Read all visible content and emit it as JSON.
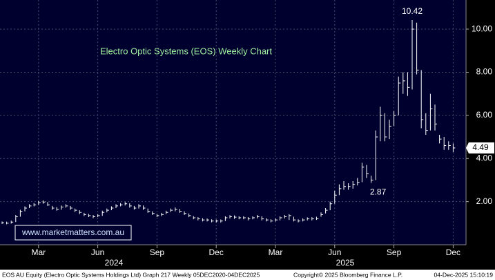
{
  "chart_data": {
    "type": "ohlc",
    "title": "Electro Optic Systems (EOS) Weekly Chart",
    "watermark": "www.marketmatters.com.au",
    "color": "#ffffff",
    "grid": true,
    "categories": [
      null,
      null,
      null,
      null,
      null,
      null,
      null,
      null,
      "Mar",
      null,
      null,
      null,
      null,
      null,
      null,
      null,
      null,
      null,
      null,
      null,
      null,
      "Jun",
      null,
      null,
      null,
      null,
      null,
      null,
      null,
      null,
      null,
      null,
      null,
      null,
      "Sep",
      null,
      null,
      null,
      null,
      null,
      null,
      null,
      null,
      null,
      null,
      null,
      null,
      "Dec",
      null,
      null,
      null,
      null,
      null,
      null,
      null,
      null,
      null,
      null,
      null,
      null,
      "Mar",
      null,
      null,
      null,
      null,
      null,
      null,
      null,
      null,
      null,
      null,
      null,
      null,
      "Jun",
      null,
      null,
      null,
      null,
      null,
      null,
      null,
      null,
      null,
      null,
      null,
      null,
      "Sep",
      null,
      null,
      null,
      null,
      null,
      null,
      null,
      null,
      null,
      null,
      null,
      null,
      "Dec"
    ],
    "x_group_labels": [
      "2024",
      "2025"
    ],
    "high": [
      1.08,
      1.07,
      1.12,
      1.38,
      1.62,
      1.78,
      1.88,
      1.93,
      2.03,
      2.06,
      1.98,
      1.8,
      1.75,
      1.82,
      1.88,
      1.8,
      1.68,
      1.6,
      1.48,
      1.43,
      1.38,
      1.42,
      1.58,
      1.68,
      1.78,
      1.88,
      1.93,
      1.98,
      1.92,
      1.8,
      1.88,
      1.82,
      1.68,
      1.55,
      1.43,
      1.48,
      1.58,
      1.68,
      1.73,
      1.66,
      1.55,
      1.45,
      1.33,
      1.28,
      1.23,
      1.22,
      1.18,
      1.17,
      1.17,
      1.32,
      1.37,
      1.36,
      1.32,
      1.32,
      1.28,
      1.32,
      1.38,
      1.32,
      1.23,
      1.18,
      1.22,
      1.32,
      1.38,
      1.42,
      1.3,
      1.18,
      1.22,
      1.27,
      1.28,
      1.3,
      1.5,
      1.7,
      2.0,
      2.5,
      2.8,
      2.95,
      2.85,
      2.95,
      3.1,
      3.8,
      3.7,
      3.2,
      5.3,
      6.4,
      6.1,
      5.8,
      6.2,
      7.8,
      8.0,
      8.0,
      10.42,
      10.3,
      8.1,
      6.1,
      7.0,
      6.5,
      5.1,
      5.0,
      4.8,
      4.7
    ],
    "low": [
      0.96,
      0.95,
      0.98,
      1.05,
      1.3,
      1.55,
      1.7,
      1.78,
      1.85,
      1.9,
      1.8,
      1.62,
      1.58,
      1.62,
      1.72,
      1.62,
      1.52,
      1.42,
      1.33,
      1.28,
      1.23,
      1.28,
      1.34,
      1.5,
      1.6,
      1.7,
      1.78,
      1.82,
      1.72,
      1.63,
      1.68,
      1.62,
      1.48,
      1.38,
      1.28,
      1.33,
      1.42,
      1.52,
      1.55,
      1.48,
      1.38,
      1.28,
      1.18,
      1.13,
      1.08,
      1.08,
      1.04,
      1.03,
      1.03,
      1.1,
      1.22,
      1.2,
      1.18,
      1.18,
      1.13,
      1.18,
      1.22,
      1.13,
      1.08,
      1.04,
      1.08,
      1.13,
      1.22,
      1.15,
      1.08,
      1.04,
      1.08,
      1.13,
      1.13,
      1.15,
      1.3,
      1.45,
      1.6,
      1.9,
      2.3,
      2.55,
      2.55,
      2.6,
      2.75,
      2.9,
      3.1,
      2.87,
      3.0,
      4.8,
      4.8,
      4.9,
      5.5,
      6.0,
      7.0,
      6.9,
      7.2,
      7.9,
      5.4,
      5.1,
      5.3,
      5.3,
      4.7,
      4.4,
      4.4,
      4.3
    ],
    "close": [
      1.02,
      1.0,
      1.05,
      1.3,
      1.55,
      1.7,
      1.8,
      1.85,
      1.95,
      1.98,
      1.85,
      1.7,
      1.65,
      1.75,
      1.8,
      1.7,
      1.6,
      1.5,
      1.4,
      1.35,
      1.3,
      1.35,
      1.5,
      1.6,
      1.7,
      1.8,
      1.85,
      1.9,
      1.8,
      1.7,
      1.8,
      1.7,
      1.55,
      1.45,
      1.35,
      1.4,
      1.5,
      1.6,
      1.65,
      1.55,
      1.45,
      1.35,
      1.25,
      1.2,
      1.15,
      1.15,
      1.1,
      1.1,
      1.1,
      1.25,
      1.3,
      1.28,
      1.25,
      1.25,
      1.2,
      1.25,
      1.3,
      1.2,
      1.15,
      1.1,
      1.15,
      1.25,
      1.3,
      1.35,
      1.15,
      1.1,
      1.15,
      1.2,
      1.2,
      1.2,
      1.4,
      1.6,
      1.9,
      2.3,
      2.6,
      2.7,
      2.7,
      2.8,
      2.9,
      3.6,
      3.3,
      3.0,
      5.0,
      6.0,
      5.0,
      5.5,
      6.0,
      7.5,
      7.6,
      7.3,
      10.0,
      8.1,
      5.8,
      5.3,
      6.3,
      5.6,
      4.9,
      4.6,
      4.6,
      4.49
    ],
    "ylim": [
      0,
      11.35
    ],
    "yticks": [
      {
        "value": 2,
        "label": "2.00"
      },
      {
        "value": 4,
        "label": "4.00"
      },
      {
        "value": 6,
        "label": "6.00"
      },
      {
        "value": 8,
        "label": "8.00"
      },
      {
        "value": 10,
        "label": "10.00"
      }
    ],
    "footer": {
      "left": "EOS AU Equity (Electro Optic Systems Holdings Ltd) Graph 217 Weekly 05DEC2020-04DEC2025",
      "middle": "Copyright© 2025 Bloomberg Finance L.P.",
      "right": "04-Dec-2025 15:10:19"
    }
  }
}
